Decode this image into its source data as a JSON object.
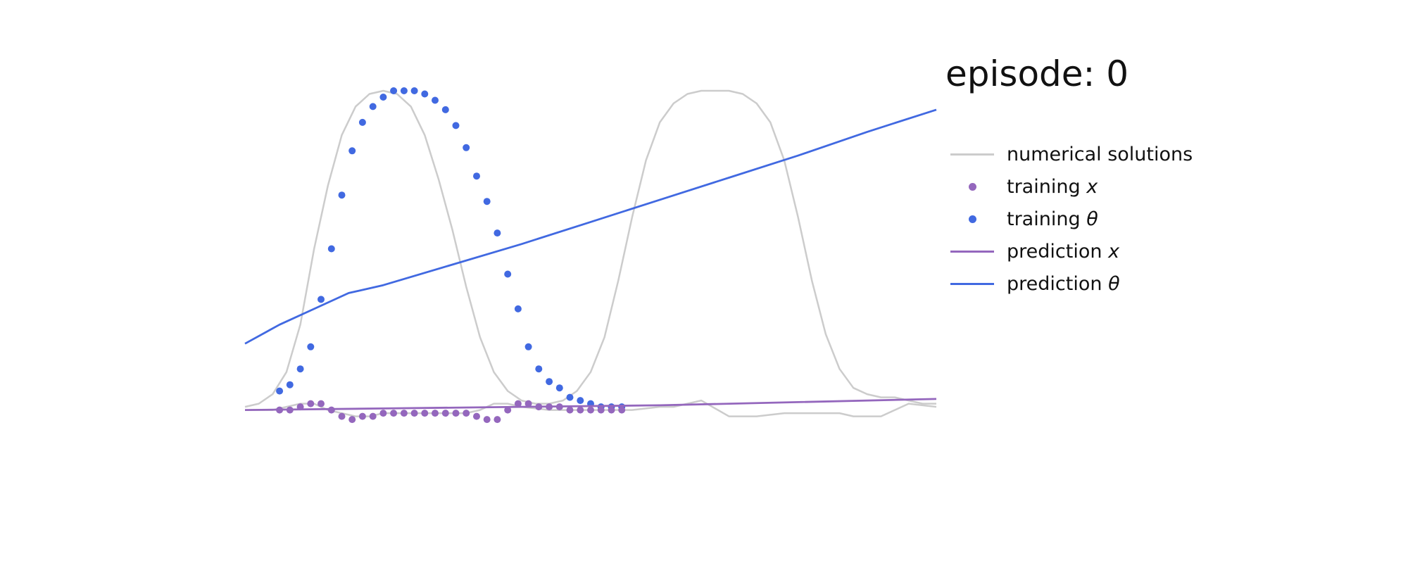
{
  "title_prefix": "episode:",
  "title_value": "0",
  "colors": {
    "numerical": "#cccccc",
    "x": "#9467bd",
    "theta": "#4169e1"
  },
  "legend": [
    {
      "text": "numerical solutions",
      "var": "",
      "kind": "line",
      "color": "#cccccc"
    },
    {
      "text": "training",
      "var": "x",
      "kind": "dot",
      "color": "#9467bd"
    },
    {
      "text": "training",
      "var": "θ",
      "kind": "dot",
      "color": "#4169e1"
    },
    {
      "text": "prediction",
      "var": "x",
      "kind": "line",
      "color": "#9467bd"
    },
    {
      "text": "prediction",
      "var": "θ",
      "kind": "line",
      "color": "#4169e1"
    }
  ],
  "chart_data": {
    "type": "line",
    "axes_visible": false,
    "grid": false,
    "legend_position": "right",
    "xlim": [
      0,
      10
    ],
    "ylim": [
      -0.12,
      1.02
    ],
    "series": [
      {
        "name": "numerical solutions",
        "style": "line",
        "x": [
          0,
          0.2,
          0.4,
          0.6,
          0.8,
          1.0,
          1.2,
          1.4,
          1.6,
          1.8,
          2.0,
          2.2,
          2.4,
          2.6,
          2.8,
          3.0,
          3.2,
          3.4,
          3.6,
          3.8,
          4.0,
          4.2,
          4.4,
          4.6,
          4.8,
          5.0,
          5.2,
          5.4,
          5.6,
          5.8,
          6.0,
          6.2,
          6.4,
          6.6,
          6.8,
          7.0,
          7.2,
          7.4,
          7.6,
          7.8,
          8.0,
          8.2,
          8.4,
          8.6,
          8.8,
          9.0,
          9.2,
          9.4,
          9.6,
          9.8,
          10.0
        ],
        "values": [
          0.0,
          0.01,
          0.04,
          0.11,
          0.26,
          0.5,
          0.7,
          0.86,
          0.95,
          0.99,
          1.0,
          0.99,
          0.95,
          0.86,
          0.72,
          0.56,
          0.38,
          0.22,
          0.11,
          0.05,
          0.02,
          0.01,
          0.01,
          0.02,
          0.05,
          0.11,
          0.22,
          0.4,
          0.6,
          0.78,
          0.9,
          0.96,
          0.99,
          1.0,
          1.0,
          1.0,
          0.99,
          0.96,
          0.9,
          0.78,
          0.6,
          0.4,
          0.23,
          0.12,
          0.06,
          0.04,
          0.03,
          0.03,
          0.02,
          0.01,
          0.01
        ]
      },
      {
        "name": "numerical solutions",
        "style": "line",
        "x": [
          0,
          0.4,
          0.8,
          1.0,
          1.2,
          1.4,
          1.6,
          1.8,
          2.0,
          2.2,
          2.4,
          2.6,
          2.8,
          3.0,
          3.2,
          3.4,
          3.6,
          3.8,
          4.0,
          4.4,
          4.8,
          5.2,
          5.6,
          6.0,
          6.2,
          6.4,
          6.6,
          7.0,
          7.4,
          7.8,
          8.0,
          8.2,
          8.4,
          8.6,
          8.8,
          9.2,
          9.6,
          10.0
        ],
        "values": [
          -0.01,
          -0.01,
          0.01,
          0.01,
          -0.01,
          -0.02,
          -0.03,
          -0.03,
          -0.02,
          -0.02,
          -0.02,
          -0.02,
          -0.02,
          -0.02,
          -0.02,
          -0.01,
          0.01,
          0.01,
          0.0,
          -0.01,
          -0.01,
          -0.01,
          -0.01,
          0.0,
          0.0,
          0.01,
          0.02,
          -0.03,
          -0.03,
          -0.02,
          -0.02,
          -0.02,
          -0.02,
          -0.02,
          -0.03,
          -0.03,
          0.01,
          0.0
        ]
      },
      {
        "name": "training θ",
        "style": "dots",
        "x": [
          0.5,
          0.65,
          0.8,
          0.95,
          1.1,
          1.25,
          1.4,
          1.55,
          1.7,
          1.85,
          2.0,
          2.15,
          2.3,
          2.45,
          2.6,
          2.75,
          2.9,
          3.05,
          3.2,
          3.35,
          3.5,
          3.65,
          3.8,
          3.95,
          4.1,
          4.25,
          4.4,
          4.55,
          4.7,
          4.85,
          5.0,
          5.15,
          5.3,
          5.45
        ],
        "values": [
          0.05,
          0.07,
          0.12,
          0.19,
          0.34,
          0.5,
          0.67,
          0.81,
          0.9,
          0.95,
          0.98,
          1.0,
          1.0,
          1.0,
          0.99,
          0.97,
          0.94,
          0.89,
          0.82,
          0.73,
          0.65,
          0.55,
          0.42,
          0.31,
          0.19,
          0.12,
          0.08,
          0.06,
          0.03,
          0.02,
          0.01,
          0.0,
          0.0,
          0.0
        ]
      },
      {
        "name": "training x",
        "style": "dots",
        "x": [
          0.5,
          0.65,
          0.8,
          0.95,
          1.1,
          1.25,
          1.4,
          1.55,
          1.7,
          1.85,
          2.0,
          2.15,
          2.3,
          2.45,
          2.6,
          2.75,
          2.9,
          3.05,
          3.2,
          3.35,
          3.5,
          3.65,
          3.8,
          3.95,
          4.1,
          4.25,
          4.4,
          4.55,
          4.7,
          4.85,
          5.0,
          5.15,
          5.3,
          5.45
        ],
        "values": [
          -0.01,
          -0.01,
          0.0,
          0.01,
          0.01,
          -0.01,
          -0.03,
          -0.04,
          -0.03,
          -0.03,
          -0.02,
          -0.02,
          -0.02,
          -0.02,
          -0.02,
          -0.02,
          -0.02,
          -0.02,
          -0.02,
          -0.03,
          -0.04,
          -0.04,
          -0.01,
          0.01,
          0.01,
          0.0,
          0.0,
          0.0,
          -0.01,
          -0.01,
          -0.01,
          -0.01,
          -0.01,
          -0.01
        ]
      },
      {
        "name": "prediction θ",
        "style": "line",
        "x": [
          0,
          0.5,
          1.0,
          1.5,
          2.0,
          3.0,
          4.0,
          5.0,
          6.0,
          7.0,
          8.0,
          9.0,
          10.0
        ],
        "values": [
          0.2,
          0.26,
          0.31,
          0.36,
          0.385,
          0.45,
          0.515,
          0.585,
          0.655,
          0.725,
          0.795,
          0.87,
          0.94
        ]
      },
      {
        "name": "prediction x",
        "style": "line",
        "x": [
          0,
          2,
          4,
          6,
          8,
          10
        ],
        "values": [
          -0.01,
          -0.005,
          0.0,
          0.005,
          0.015,
          0.025
        ]
      }
    ]
  }
}
